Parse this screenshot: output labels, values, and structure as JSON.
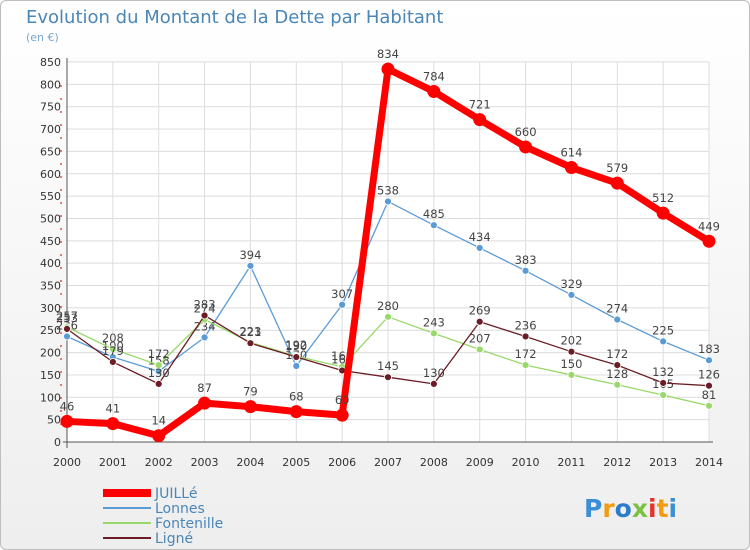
{
  "chart_data": {
    "type": "line",
    "title": "Evolution du Montant de la Dette par Habitant",
    "subtitle": "(en €)",
    "xlabel": "",
    "ylabel": "",
    "categories": [
      "2000",
      "2001",
      "2002",
      "2003",
      "2004",
      "2005",
      "2006",
      "2007",
      "2008",
      "2009",
      "2010",
      "2011",
      "2012",
      "2013",
      "2014"
    ],
    "ylim": [
      0,
      850
    ],
    "yticks": [
      0,
      50,
      100,
      150,
      200,
      250,
      300,
      350,
      400,
      450,
      500,
      550,
      600,
      650,
      700,
      750,
      800,
      850
    ],
    "grid": true,
    "legend_position": "bottom-left",
    "series": [
      {
        "name": "Lonnes",
        "color": "#5b9bd5",
        "values": [
          236,
          190,
          158,
          234,
          394,
          170,
          307,
          538,
          485,
          434,
          383,
          329,
          274,
          225,
          183
        ]
      },
      {
        "name": "Fontenille",
        "color": "#99d96a",
        "values": [
          257,
          208,
          172,
          274,
          223,
          192,
          168,
          280,
          243,
          207,
          172,
          150,
          128,
          105,
          81
        ]
      },
      {
        "name": "Ligné",
        "color": "#6b1c24",
        "values": [
          253,
          179,
          130,
          283,
          221,
          190,
          160,
          145,
          130,
          269,
          236,
          202,
          172,
          132,
          126
        ]
      },
      {
        "name": "JUILLé",
        "color": "#ff0000",
        "values": [
          46,
          41,
          14,
          87,
          79,
          68,
          60,
          834,
          784,
          721,
          660,
          614,
          579,
          512,
          449
        ]
      }
    ]
  },
  "brand": {
    "logo_text": "Proxiti"
  }
}
